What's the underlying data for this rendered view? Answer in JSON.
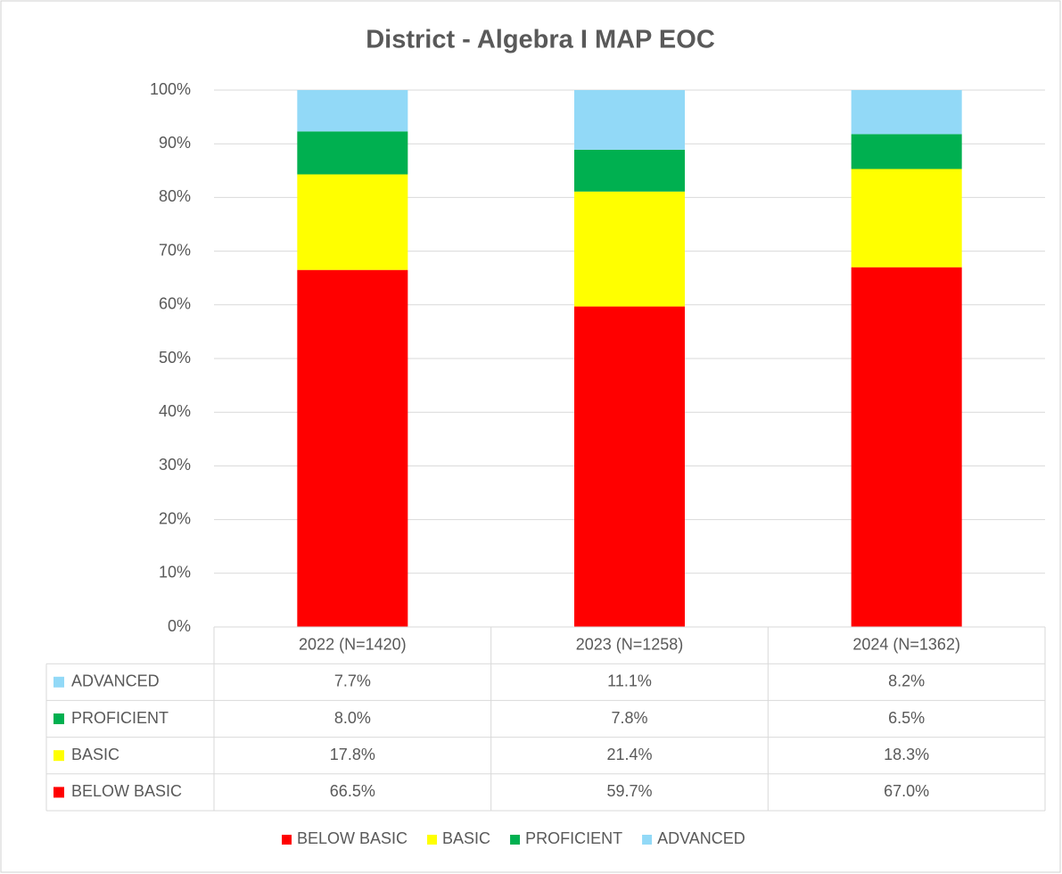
{
  "chart_data": {
    "type": "stacked_bar",
    "title": "District  - Algebra I MAP EOC",
    "categories": [
      "2022 (N=1420)",
      "2023 (N=1258)",
      "2024 (N=1362)"
    ],
    "series": [
      {
        "name": "BELOW BASIC",
        "color": "#ff0000",
        "values": [
          66.5,
          59.7,
          67.0
        ],
        "value_labels": [
          "66.5%",
          "59.7%",
          "67.0%"
        ]
      },
      {
        "name": "BASIC",
        "color": "#ffff00",
        "values": [
          17.8,
          21.4,
          18.3
        ],
        "value_labels": [
          "17.8%",
          "21.4%",
          "18.3%"
        ]
      },
      {
        "name": "PROFICIENT",
        "color": "#00b050",
        "values": [
          8.0,
          7.8,
          6.5
        ],
        "value_labels": [
          "8.0%",
          "7.8%",
          "6.5%"
        ]
      },
      {
        "name": "ADVANCED",
        "color": "#92d9f7",
        "values": [
          7.7,
          11.1,
          8.2
        ],
        "value_labels": [
          "7.7%",
          "11.1%",
          "8.2%"
        ]
      }
    ],
    "ylim": [
      0,
      100
    ],
    "yticks": [
      {
        "value": 0,
        "label": "0%"
      },
      {
        "value": 10,
        "label": "10%"
      },
      {
        "value": 20,
        "label": "20%"
      },
      {
        "value": 30,
        "label": "30%"
      },
      {
        "value": 40,
        "label": "40%"
      },
      {
        "value": 50,
        "label": "50%"
      },
      {
        "value": 60,
        "label": "60%"
      },
      {
        "value": 70,
        "label": "70%"
      },
      {
        "value": 80,
        "label": "80%"
      },
      {
        "value": 90,
        "label": "90%"
      },
      {
        "value": 100,
        "label": "100%"
      }
    ],
    "grid": true,
    "legend": "bottom"
  }
}
